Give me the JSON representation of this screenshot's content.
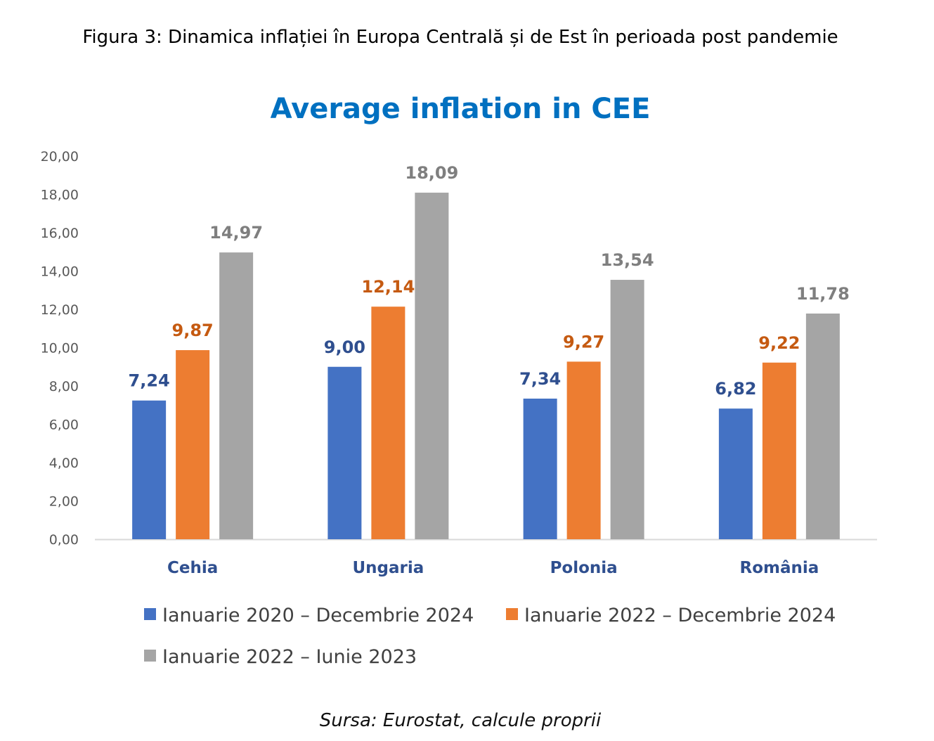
{
  "caption": "Figura 3: Dinamica inflației în Europa Centrală și de Est în perioada post pandemie",
  "source": "Sursa: Eurostat, calcule proprii",
  "chart_data": {
    "type": "bar",
    "title": "Average inflation in CEE",
    "categories": [
      "Cehia",
      "Ungaria",
      "Polonia",
      "România"
    ],
    "series": [
      {
        "name": "Ianuarie 2020 – Decembrie 2024",
        "values": [
          7.24,
          9.0,
          7.34,
          6.82
        ],
        "color": "#4472C4",
        "label_color": "#2F4F8F"
      },
      {
        "name": "Ianuarie 2022 – Decembrie 2024",
        "values": [
          9.87,
          12.14,
          9.27,
          9.22
        ],
        "color": "#ED7D31",
        "label_color": "#C55A11"
      },
      {
        "name": "Ianuarie 2022 – Iunie 2023",
        "values": [
          14.97,
          18.09,
          13.54,
          11.78
        ],
        "color": "#A5A5A5",
        "label_color": "#7F7F7F"
      }
    ],
    "y_ticks": [
      "0,00",
      "2,00",
      "4,00",
      "6,00",
      "8,00",
      "10,00",
      "12,00",
      "14,00",
      "16,00",
      "18,00",
      "20,00"
    ],
    "ylim": [
      0,
      20
    ],
    "legend_position": "bottom",
    "grid": false,
    "title_color": "#0070C0",
    "category_label_color": "#2F4F8F"
  }
}
